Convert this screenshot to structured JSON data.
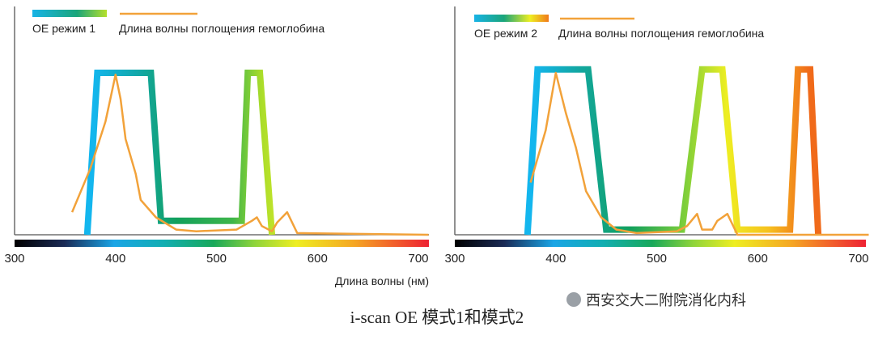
{
  "caption": "i-scan OE 模式1和模式2",
  "watermark": "西安交大二附院消化内科",
  "chart_data": [
    {
      "type": "line",
      "title": "",
      "xlabel": "Длина волны (нм)",
      "ylabel": "",
      "xlim": [
        300,
        710
      ],
      "xticks": [
        300,
        400,
        500,
        600,
        700
      ],
      "legend": {
        "placement": "top-left",
        "entries": [
          "OE режим 1",
          "Длина волны поглощения гемоглобина"
        ]
      },
      "series": [
        {
          "name": "OE режим 1",
          "style": "gradient",
          "x": [
            372,
            382,
            435,
            445,
            525,
            531,
            543,
            555
          ],
          "y": [
            0,
            0.93,
            0.93,
            0.08,
            0.08,
            0.93,
            0.93,
            0
          ]
        },
        {
          "name": "Длина волны поглощения гемоглобина",
          "color": "#f2a23a",
          "x": [
            357,
            375,
            390,
            400,
            405,
            410,
            420,
            425,
            440,
            460,
            480,
            520,
            535,
            540,
            545,
            555,
            560,
            570,
            580,
            710
          ],
          "y": [
            0.13,
            0.38,
            0.65,
            0.92,
            0.78,
            0.55,
            0.35,
            0.2,
            0.1,
            0.03,
            0.02,
            0.03,
            0.08,
            0.1,
            0.05,
            0.02,
            0.07,
            0.13,
            0.01,
            0.0
          ]
        }
      ]
    },
    {
      "type": "line",
      "title": "",
      "xlabel": "",
      "ylabel": "",
      "xlim": [
        300,
        710
      ],
      "xticks": [
        300,
        400,
        500,
        600,
        700
      ],
      "legend": {
        "placement": "top-left",
        "entries": [
          "OE режим 2",
          "Длина волны поглощения гемоглобина"
        ]
      },
      "series": [
        {
          "name": "OE режим 2",
          "style": "gradient",
          "x": [
            372,
            382,
            432,
            450,
            525,
            545,
            565,
            580,
            632,
            640,
            652,
            660
          ],
          "y": [
            0,
            0.95,
            0.95,
            0.03,
            0.03,
            0.95,
            0.95,
            0.03,
            0.03,
            0.95,
            0.95,
            0
          ]
        },
        {
          "name": "Длина волны поглощения гемоглобина",
          "color": "#f2a23a",
          "x": [
            375,
            390,
            400,
            410,
            420,
            430,
            445,
            460,
            480,
            520,
            530,
            540,
            545,
            555,
            560,
            570,
            580,
            710
          ],
          "y": [
            0.3,
            0.6,
            0.93,
            0.7,
            0.5,
            0.25,
            0.1,
            0.03,
            0.01,
            0.02,
            0.05,
            0.12,
            0.03,
            0.03,
            0.08,
            0.12,
            0.0,
            0.0
          ]
        }
      ]
    }
  ]
}
